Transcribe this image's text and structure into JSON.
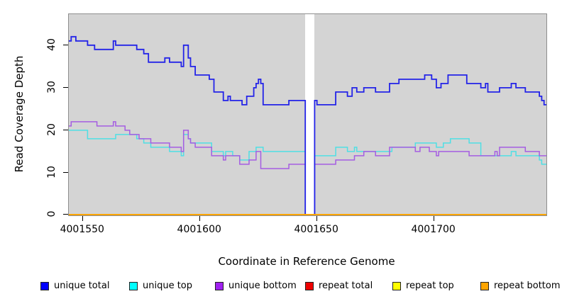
{
  "figure": {
    "x_axis_title": "Coordinate in Reference Genome",
    "y_axis_title": "Read Coverage Depth"
  },
  "chart_data": {
    "type": "line",
    "subtype": "step-coverage",
    "title": "",
    "xlabel": "Coordinate in Reference Genome",
    "ylabel": "Read Coverage Depth",
    "xlim": [
      4001544,
      4001748
    ],
    "ylim": [
      0,
      47.3
    ],
    "grid": false,
    "plot_bg_color": "#d4d4d4",
    "plot_border_color": "#8e8e8e",
    "x_tick_values": [
      4001550,
      4001600,
      4001650,
      4001700
    ],
    "x_tick_labels": [
      "4001550",
      "4001600",
      "4001650",
      "4001700"
    ],
    "y_tick_values": [
      0,
      10,
      20,
      30,
      40
    ],
    "y_tick_labels": [
      "0",
      "10",
      "20",
      "30",
      "40"
    ],
    "gap_region": {
      "x_start": 4001645,
      "x_end": 4001649,
      "color": "#ffffff",
      "note": "no-data white stripe, lines drop to 0"
    },
    "legend_position": "bottom",
    "legend": [
      {
        "label": "unique total",
        "color": "#0000ff"
      },
      {
        "label": "unique top",
        "color": "#00ffff"
      },
      {
        "label": "unique bottom",
        "color": "#a020f0"
      },
      {
        "label": "repeat total",
        "color": "#ee0000"
      },
      {
        "label": "repeat top",
        "color": "#ffff00"
      },
      {
        "label": "repeat bottom",
        "color": "#ffa500"
      }
    ],
    "series": [
      {
        "name": "unique total",
        "color": "#2323e8",
        "width": 1.8,
        "step_points": [
          [
            4001544,
            41
          ],
          [
            4001545,
            42
          ],
          [
            4001547,
            41
          ],
          [
            4001552,
            40
          ],
          [
            4001555,
            39
          ],
          [
            4001563,
            41
          ],
          [
            4001564,
            40
          ],
          [
            4001573,
            39
          ],
          [
            4001576,
            38
          ],
          [
            4001578,
            36
          ],
          [
            4001585,
            37
          ],
          [
            4001587,
            36
          ],
          [
            4001592,
            35
          ],
          [
            4001593,
            40
          ],
          [
            4001595,
            37
          ],
          [
            4001596,
            35
          ],
          [
            4001598,
            33
          ],
          [
            4001604,
            32
          ],
          [
            4001606,
            29
          ],
          [
            4001610,
            27
          ],
          [
            4001612,
            28
          ],
          [
            4001613,
            27
          ],
          [
            4001618,
            26
          ],
          [
            4001620,
            28
          ],
          [
            4001623,
            30
          ],
          [
            4001624,
            31
          ],
          [
            4001625,
            32
          ],
          [
            4001626,
            31
          ],
          [
            4001627,
            26
          ],
          [
            4001638,
            27
          ],
          [
            4001645,
            0
          ],
          [
            4001649,
            27
          ],
          [
            4001650,
            26
          ],
          [
            4001658,
            29
          ],
          [
            4001663,
            28
          ],
          [
            4001665,
            30
          ],
          [
            4001667,
            29
          ],
          [
            4001670,
            30
          ],
          [
            4001675,
            29
          ],
          [
            4001681,
            31
          ],
          [
            4001685,
            32
          ],
          [
            4001696,
            33
          ],
          [
            4001699,
            32
          ],
          [
            4001701,
            30
          ],
          [
            4001703,
            31
          ],
          [
            4001706,
            33
          ],
          [
            4001714,
            31
          ],
          [
            4001720,
            30
          ],
          [
            4001722,
            31
          ],
          [
            4001723,
            29
          ],
          [
            4001728,
            30
          ],
          [
            4001733,
            31
          ],
          [
            4001735,
            30
          ],
          [
            4001739,
            29
          ],
          [
            4001745,
            28
          ],
          [
            4001746,
            27
          ],
          [
            4001747,
            26
          ]
        ]
      },
      {
        "name": "unique top",
        "color": "#4fdfe4",
        "width": 1.5,
        "step_points": [
          [
            4001544,
            20
          ],
          [
            4001552,
            18
          ],
          [
            4001564,
            19
          ],
          [
            4001573,
            18
          ],
          [
            4001576,
            17
          ],
          [
            4001579,
            16
          ],
          [
            4001587,
            15
          ],
          [
            4001592,
            14
          ],
          [
            4001593,
            19
          ],
          [
            4001595,
            18
          ],
          [
            4001596,
            17
          ],
          [
            4001605,
            15
          ],
          [
            4001610,
            14
          ],
          [
            4001611,
            15
          ],
          [
            4001614,
            14
          ],
          [
            4001617,
            13
          ],
          [
            4001621,
            15
          ],
          [
            4001624,
            16
          ],
          [
            4001627,
            15
          ],
          [
            4001645,
            0
          ],
          [
            4001649,
            14
          ],
          [
            4001658,
            16
          ],
          [
            4001663,
            15
          ],
          [
            4001666,
            16
          ],
          [
            4001667,
            15
          ],
          [
            4001682,
            16
          ],
          [
            4001692,
            17
          ],
          [
            4001701,
            16
          ],
          [
            4001704,
            17
          ],
          [
            4001707,
            18
          ],
          [
            4001715,
            17
          ],
          [
            4001720,
            14
          ],
          [
            4001733,
            15
          ],
          [
            4001735,
            14
          ],
          [
            4001745,
            13
          ],
          [
            4001746,
            12
          ]
        ]
      },
      {
        "name": "unique bottom",
        "color": "#a55de2",
        "width": 1.5,
        "step_points": [
          [
            4001544,
            21
          ],
          [
            4001545,
            22
          ],
          [
            4001556,
            21
          ],
          [
            4001563,
            22
          ],
          [
            4001564,
            21
          ],
          [
            4001568,
            20
          ],
          [
            4001570,
            19
          ],
          [
            4001574,
            18
          ],
          [
            4001579,
            17
          ],
          [
            4001587,
            16
          ],
          [
            4001592,
            15
          ],
          [
            4001593,
            20
          ],
          [
            4001595,
            18
          ],
          [
            4001596,
            17
          ],
          [
            4001598,
            16
          ],
          [
            4001605,
            14
          ],
          [
            4001610,
            13
          ],
          [
            4001611,
            14
          ],
          [
            4001617,
            12
          ],
          [
            4001621,
            13
          ],
          [
            4001624,
            15
          ],
          [
            4001626,
            11
          ],
          [
            4001638,
            12
          ],
          [
            4001645,
            0
          ],
          [
            4001649,
            12
          ],
          [
            4001658,
            13
          ],
          [
            4001666,
            14
          ],
          [
            4001670,
            15
          ],
          [
            4001675,
            14
          ],
          [
            4001681,
            16
          ],
          [
            4001692,
            15
          ],
          [
            4001694,
            16
          ],
          [
            4001698,
            15
          ],
          [
            4001701,
            14
          ],
          [
            4001702,
            15
          ],
          [
            4001715,
            14
          ],
          [
            4001726,
            15
          ],
          [
            4001727,
            14
          ],
          [
            4001728,
            16
          ],
          [
            4001739,
            15
          ],
          [
            4001745,
            14
          ]
        ]
      },
      {
        "name": "repeat total",
        "color": "#ee0000",
        "width": 1.5,
        "step_points": [
          [
            4001544,
            0
          ]
        ]
      },
      {
        "name": "repeat top",
        "color": "#ffff00",
        "width": 1.5,
        "step_points": [
          [
            4001544,
            0
          ]
        ]
      },
      {
        "name": "repeat bottom",
        "color": "#ffa500",
        "width": 2,
        "step_points": [
          [
            4001544,
            0
          ]
        ]
      }
    ],
    "draw_order": [
      1,
      2,
      0,
      3,
      4,
      5
    ]
  },
  "layout_hints": {
    "legend_item_lefts": [
      57,
      182,
      303,
      430,
      553,
      677
    ]
  }
}
